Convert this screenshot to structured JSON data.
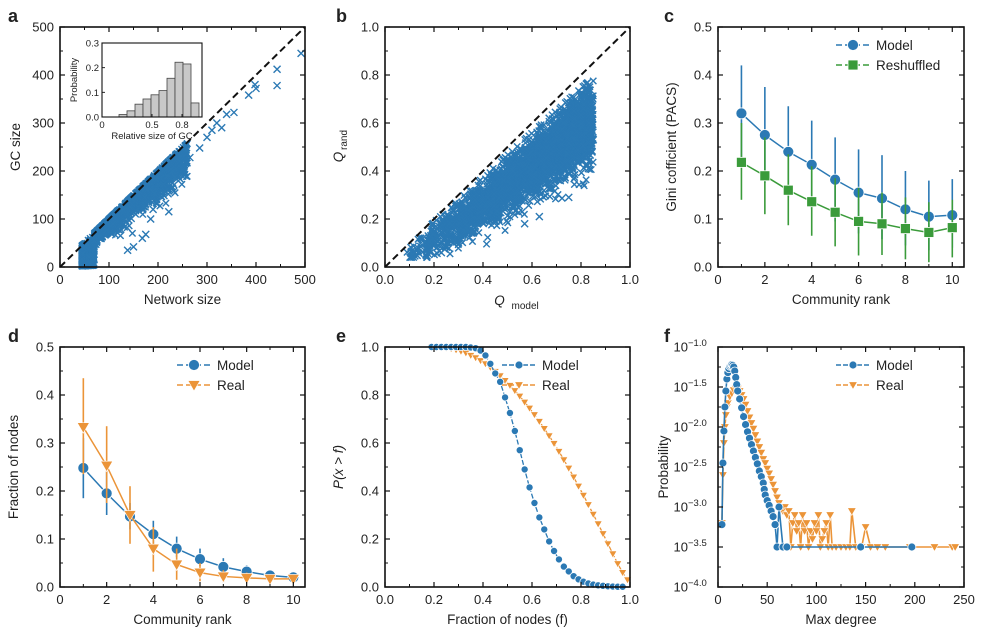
{
  "figure": {
    "colors": {
      "blue": "#2b79b4",
      "green": "#3a9b3a",
      "orange": "#eb9438",
      "bar": "#c8c8c8",
      "dash": "#111111"
    }
  },
  "chart_data": [
    {
      "panel": "a",
      "type": "scatter",
      "xlabel": "Network size",
      "ylabel": "GC size",
      "xlim": [
        0,
        500
      ],
      "ylim": [
        0,
        500
      ],
      "xticks": [
        0,
        100,
        200,
        300,
        400,
        500
      ],
      "yticks": [
        0,
        100,
        200,
        300,
        400,
        500
      ],
      "reference_line": "y = x (dashed)",
      "marker": "x",
      "cloud": {
        "x_range": [
          45,
          260
        ],
        "ratio_range": [
          0.55,
          1.0
        ],
        "count": 2600
      },
      "outliers": [
        [
          222,
          115
        ],
        [
          175,
          68
        ],
        [
          168,
          60
        ],
        [
          150,
          42
        ],
        [
          138,
          35
        ],
        [
          185,
          100
        ],
        [
          190,
          120
        ],
        [
          197,
          135
        ],
        [
          205,
          148
        ],
        [
          215,
          158
        ],
        [
          230,
          175
        ],
        [
          245,
          220
        ],
        [
          252,
          205
        ],
        [
          265,
          228
        ],
        [
          285,
          248
        ],
        [
          300,
          270
        ],
        [
          310,
          285
        ],
        [
          320,
          300
        ],
        [
          330,
          290
        ],
        [
          340,
          318
        ],
        [
          355,
          322
        ],
        [
          385,
          358
        ],
        [
          400,
          372
        ],
        [
          398,
          380
        ],
        [
          443,
          412
        ],
        [
          443,
          378
        ],
        [
          492,
          445
        ]
      ],
      "inset": {
        "type": "bar",
        "xlabel": "Relative size of GC",
        "ylabel": "Probability",
        "xlim": [
          0,
          1
        ],
        "ylim": [
          0,
          0.3
        ],
        "xticks": [
          "0",
          "0.5",
          "0.8"
        ],
        "xtick_values": [
          0,
          0.5,
          0.8
        ],
        "yticks": [
          "0.0",
          "0.1",
          "0.2",
          "0.3"
        ],
        "bin_edges": [
          0.17,
          0.25,
          0.33,
          0.41,
          0.49,
          0.57,
          0.65,
          0.73,
          0.81,
          0.89,
          0.97
        ],
        "values": [
          0.01,
          0.025,
          0.052,
          0.073,
          0.09,
          0.107,
          0.157,
          0.222,
          0.215,
          0.057
        ]
      }
    },
    {
      "panel": "b",
      "type": "scatter",
      "xlabel_main": "Q",
      "xlabel_sub": "model",
      "ylabel_main": "Q",
      "ylabel_sub": "rand",
      "xlim": [
        0,
        1
      ],
      "ylim": [
        0,
        1
      ],
      "xticks": [
        "0.0",
        "0.2",
        "0.4",
        "0.6",
        "0.8",
        "1.0"
      ],
      "yticks": [
        "0.0",
        "0.2",
        "0.4",
        "0.6",
        "0.8",
        "1.0"
      ],
      "reference_line": "y = x (dashed)",
      "marker": "x",
      "cloud": {
        "x_range": [
          0.08,
          0.85
        ],
        "count": 3000
      },
      "outliers": [
        [
          0.23,
          0.06
        ],
        [
          0.57,
          0.18
        ],
        [
          0.63,
          0.21
        ],
        [
          0.52,
          0.48
        ],
        [
          0.42,
          0.38
        ],
        [
          0.67,
          0.62
        ],
        [
          0.81,
          0.66
        ],
        [
          0.84,
          0.64
        ],
        [
          0.85,
          0.53
        ],
        [
          0.83,
          0.41
        ],
        [
          0.75,
          0.29
        ],
        [
          0.12,
          0.06
        ],
        [
          0.77,
          0.65
        ]
      ]
    },
    {
      "panel": "c",
      "type": "line",
      "xlabel": "Community rank",
      "ylabel": "Gini cofficient (PACS)",
      "xlim": [
        0,
        10.5
      ],
      "ylim": [
        0,
        0.5
      ],
      "xticks": [
        "0",
        "2",
        "4",
        "6",
        "8",
        "10"
      ],
      "yticks": [
        "0.0",
        "0.1",
        "0.2",
        "0.3",
        "0.4",
        "0.5"
      ],
      "legend_position": "top-right",
      "x": [
        1,
        2,
        3,
        4,
        5,
        6,
        7,
        8,
        9,
        10
      ],
      "series": [
        {
          "name": "Model",
          "marker": "circle",
          "color": "blue",
          "values": [
            0.32,
            0.275,
            0.24,
            0.213,
            0.182,
            0.155,
            0.143,
            0.12,
            0.105,
            0.108
          ],
          "err_low": [
            0.22,
            0.175,
            0.145,
            0.12,
            0.095,
            0.07,
            0.058,
            0.045,
            0.035,
            0.04
          ],
          "err_high": [
            0.42,
            0.375,
            0.335,
            0.305,
            0.27,
            0.245,
            0.233,
            0.2,
            0.18,
            0.183
          ]
        },
        {
          "name": "Reshuffled",
          "marker": "square",
          "color": "green",
          "values": [
            0.218,
            0.19,
            0.16,
            0.136,
            0.114,
            0.095,
            0.09,
            0.08,
            0.072,
            0.082
          ],
          "err_low": [
            0.14,
            0.11,
            0.087,
            0.065,
            0.043,
            0.024,
            0.025,
            0.016,
            0.01,
            0.02
          ],
          "err_high": [
            0.3,
            0.27,
            0.235,
            0.21,
            0.185,
            0.165,
            0.155,
            0.145,
            0.135,
            0.14
          ]
        }
      ]
    },
    {
      "panel": "d",
      "type": "line",
      "xlabel": "Community rank",
      "ylabel": "Fraction of nodes",
      "xlim": [
        0,
        10.5
      ],
      "ylim": [
        0,
        0.5
      ],
      "xticks": [
        "0",
        "2",
        "4",
        "6",
        "8",
        "10"
      ],
      "yticks": [
        "0.0",
        "0.1",
        "0.2",
        "0.3",
        "0.4",
        "0.5"
      ],
      "legend_position": "top-right",
      "x": [
        1,
        2,
        3,
        4,
        5,
        6,
        7,
        8,
        9,
        10
      ],
      "series": [
        {
          "name": "Model",
          "marker": "circle",
          "color": "blue",
          "values": [
            0.248,
            0.195,
            0.147,
            0.11,
            0.08,
            0.058,
            0.042,
            0.032,
            0.024,
            0.02
          ],
          "err_low": [
            0.185,
            0.15,
            0.12,
            0.09,
            0.062,
            0.044,
            0.032,
            0.025,
            0.019,
            0.016
          ],
          "err_high": [
            0.31,
            0.24,
            0.175,
            0.138,
            0.105,
            0.08,
            0.06,
            0.045,
            0.032,
            0.026
          ]
        },
        {
          "name": "Real",
          "marker": "triangle-down",
          "color": "orange",
          "values": [
            0.333,
            0.253,
            0.15,
            0.08,
            0.047,
            0.03,
            0.022,
            0.019,
            0.017,
            0.017
          ],
          "err_low": [
            0.235,
            0.175,
            0.09,
            0.032,
            0.015,
            0.012,
            0.01,
            0.01,
            0.01,
            0.01
          ],
          "err_high": [
            0.435,
            0.335,
            0.21,
            0.125,
            0.08,
            0.05,
            0.035,
            0.03,
            0.025,
            0.024
          ]
        }
      ]
    },
    {
      "panel": "e",
      "type": "line",
      "xlabel": "Fraction of nodes (f)",
      "ylabel": "P(x > f)",
      "xlim": [
        0,
        1
      ],
      "ylim": [
        0,
        1
      ],
      "xticks": [
        "0.0",
        "0.2",
        "0.4",
        "0.6",
        "0.8",
        "1.0"
      ],
      "yticks": [
        "0.0",
        "0.2",
        "0.4",
        "0.6",
        "0.8",
        "1.0"
      ],
      "legend_position": "top-right",
      "series": [
        {
          "name": "Model",
          "marker": "circle",
          "color": "blue",
          "x": [
            0.19,
            0.21,
            0.23,
            0.25,
            0.27,
            0.29,
            0.31,
            0.33,
            0.35,
            0.37,
            0.39,
            0.41,
            0.43,
            0.45,
            0.47,
            0.49,
            0.51,
            0.53,
            0.55,
            0.57,
            0.59,
            0.61,
            0.63,
            0.65,
            0.67,
            0.69,
            0.71,
            0.73,
            0.75,
            0.77,
            0.79,
            0.81,
            0.83,
            0.85,
            0.87,
            0.89,
            0.91,
            0.93,
            0.95,
            0.97
          ],
          "values": [
            1.0,
            1.0,
            1.0,
            1.0,
            1.0,
            1.0,
            1.0,
            1.0,
            0.998,
            0.995,
            0.985,
            0.965,
            0.93,
            0.89,
            0.855,
            0.79,
            0.725,
            0.65,
            0.57,
            0.49,
            0.415,
            0.35,
            0.29,
            0.24,
            0.19,
            0.15,
            0.115,
            0.085,
            0.065,
            0.045,
            0.032,
            0.022,
            0.015,
            0.01,
            0.007,
            0.005,
            0.003,
            0.002,
            0.001,
            0.001
          ]
        },
        {
          "name": "Real",
          "marker": "triangle-down",
          "color": "orange",
          "x": [
            0.19,
            0.21,
            0.23,
            0.25,
            0.27,
            0.29,
            0.31,
            0.33,
            0.35,
            0.37,
            0.39,
            0.41,
            0.43,
            0.45,
            0.47,
            0.49,
            0.51,
            0.53,
            0.55,
            0.57,
            0.59,
            0.61,
            0.63,
            0.65,
            0.67,
            0.69,
            0.71,
            0.73,
            0.75,
            0.77,
            0.79,
            0.81,
            0.83,
            0.85,
            0.87,
            0.89,
            0.91,
            0.93,
            0.95,
            0.97,
            0.99
          ],
          "values": [
            1.0,
            1.0,
            0.998,
            0.996,
            0.993,
            0.988,
            0.982,
            0.975,
            0.965,
            0.955,
            0.943,
            0.93,
            0.915,
            0.898,
            0.88,
            0.86,
            0.84,
            0.818,
            0.795,
            0.77,
            0.745,
            0.718,
            0.69,
            0.66,
            0.63,
            0.598,
            0.565,
            0.53,
            0.495,
            0.458,
            0.42,
            0.382,
            0.343,
            0.303,
            0.263,
            0.222,
            0.18,
            0.138,
            0.097,
            0.06,
            0.03
          ]
        }
      ]
    },
    {
      "panel": "f",
      "type": "line",
      "xlabel": "Max degree",
      "ylabel": "Probability",
      "yscale": "log10",
      "xlim": [
        0,
        250
      ],
      "ylim_log10": [
        -4.0,
        -1.0
      ],
      "xticks": [
        "0",
        "50",
        "100",
        "150",
        "200",
        "250"
      ],
      "yticks_exp": [
        "−4.0",
        "−3.5",
        "−3.0",
        "−2.5",
        "−2.0",
        "−1.5",
        "−1.0"
      ],
      "ytick_base": "10",
      "legend_position": "top-right",
      "series": [
        {
          "name": "Model",
          "marker": "circle",
          "color": "blue",
          "x": [
            4,
            5,
            6,
            7,
            8,
            9,
            10,
            11,
            12,
            13,
            14,
            15,
            16,
            17,
            18,
            19,
            20,
            22,
            24,
            26,
            28,
            30,
            32,
            34,
            36,
            38,
            40,
            42,
            44,
            46,
            47,
            48,
            50,
            52,
            54,
            56,
            58,
            60,
            62,
            66,
            70,
            145,
            197
          ],
          "log10_values": [
            -3.22,
            -2.45,
            -2.05,
            -1.75,
            -1.55,
            -1.4,
            -1.32,
            -1.27,
            -1.24,
            -1.23,
            -1.22,
            -1.23,
            -1.25,
            -1.3,
            -1.38,
            -1.47,
            -1.55,
            -1.65,
            -1.76,
            -1.87,
            -1.97,
            -2.06,
            -2.14,
            -2.22,
            -2.3,
            -2.38,
            -2.46,
            -2.55,
            -2.62,
            -2.7,
            -2.78,
            -2.85,
            -2.92,
            -2.98,
            -3.05,
            -3.12,
            -3.22,
            -3.5,
            -3.0,
            -3.5,
            -3.5,
            -3.5,
            -3.5
          ]
        },
        {
          "name": "Real",
          "marker": "triangle-down",
          "color": "orange",
          "x": [
            4,
            5,
            6,
            7,
            8,
            9,
            10,
            12,
            14,
            16,
            18,
            20,
            22,
            24,
            26,
            28,
            30,
            32,
            34,
            36,
            38,
            40,
            42,
            44,
            46,
            48,
            50,
            52,
            54,
            56,
            58,
            60,
            62,
            64,
            66,
            68,
            70,
            72,
            74,
            76,
            78,
            80,
            82,
            84,
            86,
            88,
            90,
            92,
            94,
            96,
            98,
            100,
            102,
            104,
            106,
            108,
            110,
            112,
            114,
            116,
            120,
            125,
            130,
            134,
            136,
            140,
            146,
            150,
            155,
            162,
            170,
            195,
            220,
            238,
            241
          ],
          "log10_values": [
            -3.2,
            -2.6,
            -2.2,
            -2.0,
            -1.85,
            -1.75,
            -1.7,
            -1.62,
            -1.58,
            -1.54,
            -1.52,
            -1.52,
            -1.55,
            -1.6,
            -1.65,
            -1.72,
            -1.8,
            -1.88,
            -1.95,
            -2.02,
            -2.1,
            -2.18,
            -2.25,
            -2.32,
            -2.4,
            -2.45,
            -2.52,
            -2.58,
            -2.65,
            -2.72,
            -2.8,
            -2.88,
            -2.95,
            -3.0,
            -3.05,
            -3.0,
            -3.1,
            -3.05,
            -3.5,
            -3.2,
            -3.1,
            -3.3,
            -3.2,
            -3.5,
            -3.1,
            -3.3,
            -3.2,
            -3.5,
            -3.3,
            -3.4,
            -3.2,
            -3.3,
            -3.1,
            -3.5,
            -3.4,
            -3.3,
            -3.2,
            -3.5,
            -3.1,
            -3.5,
            -3.5,
            -3.5,
            -3.5,
            -3.5,
            -3.05,
            -3.5,
            -3.5,
            -3.25,
            -3.5,
            -3.5,
            -3.5,
            -3.5,
            -3.5,
            -3.5,
            -3.5
          ]
        }
      ]
    }
  ]
}
